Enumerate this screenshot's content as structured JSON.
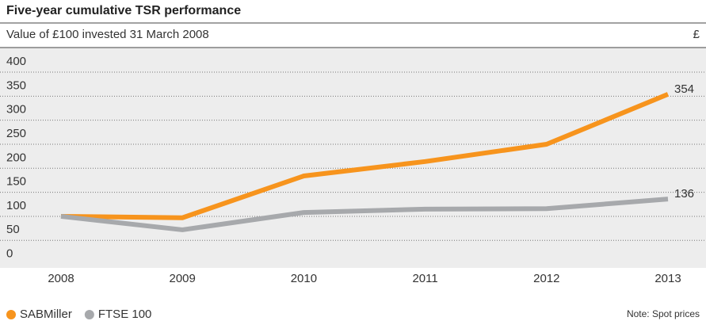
{
  "chart_data": {
    "type": "line",
    "title": "Five-year cumulative TSR performance",
    "subtitle": "Value of £100 invested 31 March 2008",
    "y_unit": "£",
    "note": "Note: Spot prices",
    "categories": [
      "2008",
      "2009",
      "2010",
      "2011",
      "2012",
      "2013"
    ],
    "series": [
      {
        "name": "SABMiller",
        "color": "#f7941d",
        "values": [
          100,
          97,
          184,
          214,
          250,
          354
        ]
      },
      {
        "name": "FTSE 100",
        "color": "#a7a9ac",
        "values": [
          100,
          72,
          108,
          115,
          116,
          136
        ]
      }
    ],
    "ylim": [
      0,
      400
    ],
    "yticks": [
      0,
      50,
      100,
      150,
      200,
      250,
      300,
      350,
      400
    ],
    "grid": true,
    "legend": "bottom-left"
  }
}
